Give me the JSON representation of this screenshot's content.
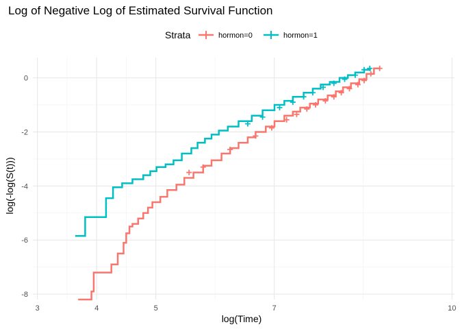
{
  "chart_data": {
    "type": "line",
    "title": "Log of Negative Log of Estimated Survival Function",
    "xlabel": "log(Time)",
    "ylabel": "log(-log(S(t)))",
    "x_scale": "log",
    "xlim": [
      18.6,
      23000
    ],
    "ylim": [
      -8.2,
      0.75
    ],
    "x_ticks": [
      {
        "value": 20.09,
        "label": "3"
      },
      {
        "value": 54.6,
        "label": "4"
      },
      {
        "value": 148.4,
        "label": "5"
      },
      {
        "value": 1096.6,
        "label": "7"
      },
      {
        "value": 22026.5,
        "label": "10"
      }
    ],
    "y_ticks": [
      {
        "value": -8,
        "label": "-8"
      },
      {
        "value": -6,
        "label": "-6"
      },
      {
        "value": -4,
        "label": "-4"
      },
      {
        "value": -2,
        "label": "-2"
      },
      {
        "value": 0,
        "label": "0"
      }
    ],
    "grid": true,
    "legend": {
      "title": "Strata",
      "position": "top"
    },
    "series": [
      {
        "name": "hormon=0",
        "color": "#F8766D",
        "x": [
          40,
          50,
          50,
          52,
          52,
          54,
          54,
          70,
          70,
          78,
          78,
          86,
          86,
          90,
          90,
          95,
          95,
          100,
          100,
          110,
          110,
          120,
          120,
          130,
          130,
          140,
          140,
          160,
          160,
          180,
          180,
          210,
          210,
          240,
          240,
          280,
          280,
          330,
          330,
          380,
          380,
          450,
          450,
          520,
          520,
          600,
          600,
          700,
          700,
          800,
          800,
          950,
          950,
          1100,
          1100,
          1300,
          1300,
          1500,
          1500,
          1700,
          1700,
          2000,
          2000,
          2300,
          2300,
          2700,
          2700,
          3100,
          3100,
          3500,
          3500,
          4000,
          4000,
          4600,
          4600,
          5200,
          5200,
          5900,
          5900,
          6500
        ],
        "y": [
          -8.2,
          -8.2,
          -7.9,
          -7.9,
          -7.2,
          -7.2,
          -7.2,
          -7.2,
          -6.9,
          -6.9,
          -6.5,
          -6.5,
          -6.1,
          -6.1,
          -5.75,
          -5.75,
          -5.5,
          -5.5,
          -5.4,
          -5.4,
          -5.2,
          -5.2,
          -5.0,
          -5.0,
          -4.8,
          -4.8,
          -4.6,
          -4.6,
          -4.4,
          -4.4,
          -4.15,
          -4.15,
          -3.95,
          -3.95,
          -3.7,
          -3.7,
          -3.5,
          -3.5,
          -3.25,
          -3.25,
          -3.05,
          -3.05,
          -2.8,
          -2.8,
          -2.6,
          -2.6,
          -2.4,
          -2.4,
          -2.2,
          -2.2,
          -2.0,
          -2.0,
          -1.8,
          -1.8,
          -1.6,
          -1.6,
          -1.4,
          -1.4,
          -1.25,
          -1.25,
          -1.1,
          -1.1,
          -0.95,
          -0.95,
          -0.8,
          -0.8,
          -0.65,
          -0.65,
          -0.5,
          -0.5,
          -0.35,
          -0.35,
          -0.2,
          -0.2,
          -0.05,
          -0.05,
          0.15,
          0.15,
          0.35,
          0.35
        ],
        "censored": [
          [
            260,
            -3.5
          ],
          [
            330,
            -3.3
          ],
          [
            520,
            -2.65
          ],
          [
            800,
            -2.15
          ],
          [
            1050,
            -1.85
          ],
          [
            1350,
            -1.55
          ],
          [
            1600,
            -1.35
          ],
          [
            1900,
            -1.15
          ],
          [
            2200,
            -1.0
          ],
          [
            2600,
            -0.85
          ],
          [
            3000,
            -0.7
          ],
          [
            3400,
            -0.55
          ],
          [
            3900,
            -0.4
          ],
          [
            4500,
            -0.25
          ],
          [
            5000,
            -0.1
          ],
          [
            5600,
            0.15
          ],
          [
            6500,
            0.35
          ]
        ]
      },
      {
        "name": "hormon=1",
        "color": "#00BFC4",
        "x": [
          38,
          45,
          45,
          64,
          64,
          72,
          72,
          84,
          84,
          100,
          100,
          120,
          120,
          135,
          135,
          150,
          150,
          175,
          175,
          200,
          200,
          230,
          230,
          270,
          270,
          300,
          300,
          340,
          340,
          380,
          380,
          430,
          430,
          500,
          500,
          600,
          600,
          750,
          750,
          900,
          900,
          1100,
          1100,
          1300,
          1300,
          1500,
          1500,
          1800,
          1800,
          2100,
          2100,
          2400,
          2400,
          2800,
          2800,
          3300,
          3300,
          3800,
          3800,
          4300,
          4300,
          5000,
          5000,
          5600
        ],
        "y": [
          -5.85,
          -5.85,
          -5.15,
          -5.15,
          -4.45,
          -4.45,
          -4.05,
          -4.05,
          -3.9,
          -3.9,
          -3.75,
          -3.75,
          -3.6,
          -3.6,
          -3.45,
          -3.45,
          -3.3,
          -3.3,
          -3.2,
          -3.2,
          -3.05,
          -3.05,
          -2.8,
          -2.8,
          -2.6,
          -2.6,
          -2.4,
          -2.4,
          -2.25,
          -2.25,
          -2.1,
          -2.1,
          -1.95,
          -1.95,
          -1.8,
          -1.8,
          -1.6,
          -1.6,
          -1.4,
          -1.4,
          -1.2,
          -1.2,
          -1.0,
          -1.0,
          -0.85,
          -0.85,
          -0.7,
          -0.7,
          -0.55,
          -0.55,
          -0.4,
          -0.4,
          -0.25,
          -0.25,
          -0.15,
          -0.15,
          0.0,
          0.0,
          0.1,
          0.1,
          0.2,
          0.2,
          0.3,
          0.3
        ],
        "censored": [
          [
            700,
            -1.7
          ],
          [
            900,
            -1.45
          ],
          [
            1200,
            -1.1
          ],
          [
            1500,
            -0.9
          ],
          [
            1800,
            -0.7
          ],
          [
            2100,
            -0.55
          ],
          [
            2500,
            -0.35
          ],
          [
            3000,
            -0.2
          ],
          [
            3600,
            -0.05
          ],
          [
            4300,
            0.1
          ],
          [
            5000,
            0.3
          ],
          [
            5500,
            0.35
          ]
        ]
      }
    ]
  }
}
